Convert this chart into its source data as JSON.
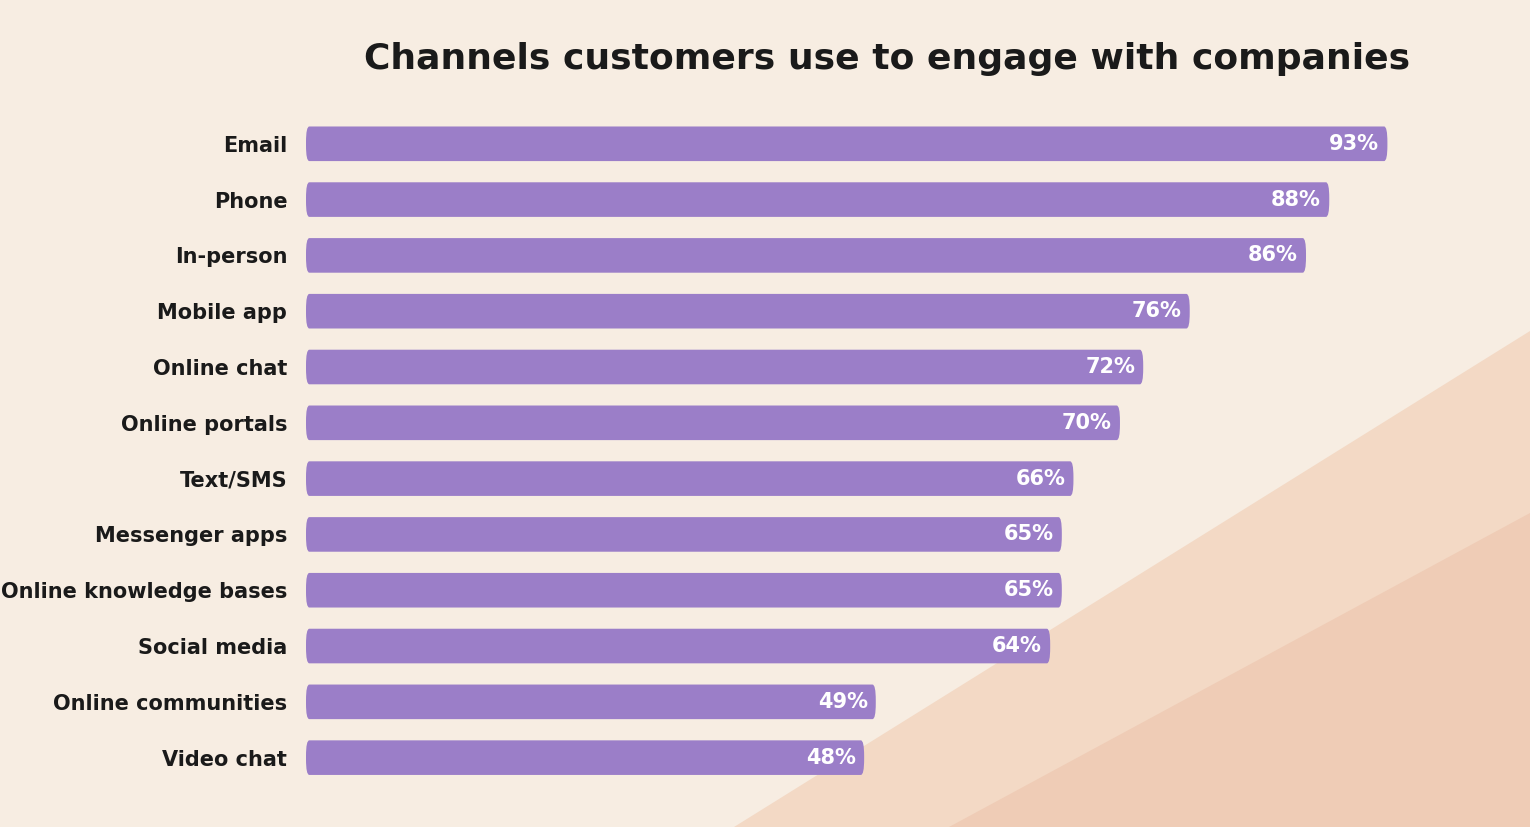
{
  "title": "Channels customers use to engage with companies",
  "categories": [
    "Email",
    "Phone",
    "In-person",
    "Mobile app",
    "Online chat",
    "Online portals",
    "Text/SMS",
    "Messenger apps",
    "Online knowledge bases",
    "Social media",
    "Online communities",
    "Video chat"
  ],
  "values": [
    93,
    88,
    86,
    76,
    72,
    70,
    66,
    65,
    65,
    64,
    49,
    48
  ],
  "bar_color": "#9b7ec8",
  "label_color": "#ffffff",
  "title_color": "#1a1a1a",
  "background_color": "#f7ede2",
  "gradient_color1": "#f0c9ae",
  "gradient_color2": "#e8b49a",
  "xlim": [
    0,
    100
  ],
  "bar_height": 0.62,
  "title_fontsize": 26,
  "label_fontsize": 15,
  "category_fontsize": 15,
  "rounding_size": 0.28
}
